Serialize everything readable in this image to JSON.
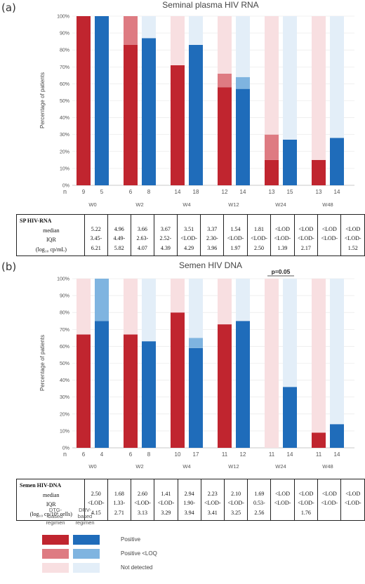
{
  "panels": [
    {
      "letter": "(a)",
      "title": "Seminal plasma HIV RNA",
      "p_value": "",
      "table": {
        "header": "SP HIV-RNA",
        "row_labels": [
          "median",
          "IQR",
          "(log₁₀ cp/mL)"
        ],
        "cells": [
          [
            "5.22",
            "3.45-",
            "6.21"
          ],
          [
            "4.96",
            "4.49-",
            "5.82"
          ],
          [
            "3.66",
            "2.63-",
            "4.07"
          ],
          [
            "3.67",
            "2.52-",
            "4.39"
          ],
          [
            "3.51",
            "<LOD-",
            "4.29"
          ],
          [
            "3.37",
            "2.30-",
            "3.96"
          ],
          [
            "1.54",
            "<LOD-",
            "1.97"
          ],
          [
            "1.81",
            "<LOD-",
            "2.50"
          ],
          [
            "<LOD",
            "<LOD-",
            "1.39"
          ],
          [
            "<LOD",
            "<LOD-",
            "2.17"
          ],
          [
            "<LOD",
            "<LOD-",
            ""
          ],
          [
            "<LOD",
            "<LOD-",
            "1.52"
          ]
        ]
      }
    },
    {
      "letter": "(b)",
      "title": "Semen  HIV DNA",
      "p_value": "p=0.05",
      "table": {
        "header": "Semen HIV-DNA",
        "row_labels": [
          "median",
          "IQR",
          "(log₁₀ cp/10⁶ cells)"
        ],
        "cells": [
          [
            "2.50",
            "<LOD-",
            "4.15"
          ],
          [
            "1.68",
            "1.33-",
            "2.71"
          ],
          [
            "2.60",
            "<LOD-",
            "3.13"
          ],
          [
            "1.41",
            "<LOD-",
            "3.29"
          ],
          [
            "2.94",
            "1.90-",
            "3.94"
          ],
          [
            "2.23",
            "<LOD-",
            "3.41"
          ],
          [
            "2.10",
            "<LOD-",
            "3.25"
          ],
          [
            "1.69",
            "0.53-",
            "2.56"
          ],
          [
            "<LOD",
            "<LOD-",
            ""
          ],
          [
            "<LOD",
            "<LOD-",
            "1.76"
          ],
          [
            "<LOD",
            "<LOD-",
            ""
          ],
          [
            "<LOD",
            "<LOD-",
            ""
          ]
        ]
      }
    }
  ],
  "legend": {
    "col1": "DTG-\nbased\nregimen",
    "col2": "DRV-\nbased\nregimen",
    "items": [
      "Positive",
      "Positive <LOQ",
      "Not detected"
    ]
  },
  "colors": {
    "dtg_positive": "#c0252f",
    "dtg_loq": "#de7b82",
    "dtg_nd": "#f8dfe1",
    "drv_positive": "#1f6cba",
    "drv_loq": "#7fb4e0",
    "drv_nd": "#e3eef8"
  },
  "chart_data": [
    {
      "type": "bar",
      "stacked": true,
      "title": "Seminal plasma HIV RNA",
      "xlabel": "",
      "ylabel": "Percentage of patients",
      "ylim": [
        0,
        100
      ],
      "y_ticks": [
        "0%",
        "10%",
        "20%",
        "30%",
        "40%",
        "50%",
        "60%",
        "70%",
        "80%",
        "90%",
        "100%"
      ],
      "categories": [
        "W0",
        "W2",
        "W4",
        "W12",
        "W24",
        "W48"
      ],
      "n_label": "n",
      "series": [
        {
          "name": "DTG-based regimen",
          "n": [
            9,
            6,
            14,
            12,
            13,
            13
          ],
          "positive": [
            100,
            83,
            71,
            58,
            15,
            15
          ],
          "positive_loq": [
            0,
            17,
            0,
            8,
            15,
            0
          ],
          "not_detected": [
            0,
            0,
            29,
            34,
            70,
            85
          ]
        },
        {
          "name": "DRV-based regimen",
          "n": [
            5,
            8,
            18,
            14,
            15,
            14
          ],
          "positive": [
            100,
            87,
            83,
            57,
            27,
            28
          ],
          "positive_loq": [
            0,
            0,
            0,
            7,
            0,
            0
          ],
          "not_detected": [
            0,
            13,
            17,
            36,
            73,
            72
          ]
        }
      ]
    },
    {
      "type": "bar",
      "stacked": true,
      "title": "Semen  HIV DNA",
      "xlabel": "",
      "ylabel": "Percentage of patients",
      "ylim": [
        0,
        100
      ],
      "y_ticks": [
        "0%",
        "10%",
        "20%",
        "30%",
        "40%",
        "50%",
        "60%",
        "70%",
        "80%",
        "90%",
        "100%"
      ],
      "categories": [
        "W0",
        "W2",
        "W4",
        "W12",
        "W24",
        "W48"
      ],
      "n_label": "n",
      "annotation": {
        "text": "p=0.05",
        "category": "W24"
      },
      "series": [
        {
          "name": "DTG-based regimen",
          "n": [
            6,
            6,
            10,
            11,
            11,
            11
          ],
          "positive": [
            67,
            67,
            80,
            73,
            0,
            9
          ],
          "positive_loq": [
            0,
            0,
            0,
            0,
            0,
            0
          ],
          "not_detected": [
            33,
            33,
            20,
            27,
            100,
            91
          ]
        },
        {
          "name": "DRV-based regimen",
          "n": [
            4,
            8,
            17,
            12,
            14,
            14
          ],
          "positive": [
            75,
            63,
            59,
            75,
            36,
            14
          ],
          "positive_loq": [
            25,
            0,
            6,
            0,
            0,
            0
          ],
          "not_detected": [
            0,
            37,
            35,
            25,
            64,
            86
          ]
        }
      ]
    }
  ]
}
